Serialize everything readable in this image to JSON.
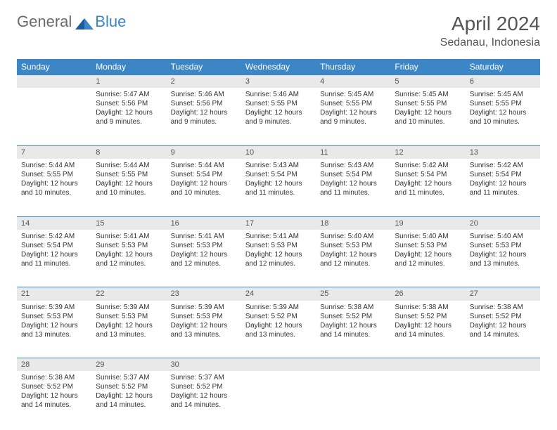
{
  "brand": {
    "part1": "General",
    "part2": "Blue"
  },
  "title": "April 2024",
  "location": "Sedanau, Indonesia",
  "colors": {
    "header_bg": "#3d86c6",
    "header_fg": "#ffffff",
    "daynum_bg": "#e9e9e9",
    "row_border": "#3d86c6",
    "text": "#333333",
    "title_color": "#555555"
  },
  "weekdays": [
    "Sunday",
    "Monday",
    "Tuesday",
    "Wednesday",
    "Thursday",
    "Friday",
    "Saturday"
  ],
  "weeks": [
    [
      null,
      {
        "n": "1",
        "sr": "5:47 AM",
        "ss": "5:56 PM",
        "dl": "12 hours and 9 minutes."
      },
      {
        "n": "2",
        "sr": "5:46 AM",
        "ss": "5:56 PM",
        "dl": "12 hours and 9 minutes."
      },
      {
        "n": "3",
        "sr": "5:46 AM",
        "ss": "5:55 PM",
        "dl": "12 hours and 9 minutes."
      },
      {
        "n": "4",
        "sr": "5:45 AM",
        "ss": "5:55 PM",
        "dl": "12 hours and 9 minutes."
      },
      {
        "n": "5",
        "sr": "5:45 AM",
        "ss": "5:55 PM",
        "dl": "12 hours and 10 minutes."
      },
      {
        "n": "6",
        "sr": "5:45 AM",
        "ss": "5:55 PM",
        "dl": "12 hours and 10 minutes."
      }
    ],
    [
      {
        "n": "7",
        "sr": "5:44 AM",
        "ss": "5:55 PM",
        "dl": "12 hours and 10 minutes."
      },
      {
        "n": "8",
        "sr": "5:44 AM",
        "ss": "5:55 PM",
        "dl": "12 hours and 10 minutes."
      },
      {
        "n": "9",
        "sr": "5:44 AM",
        "ss": "5:54 PM",
        "dl": "12 hours and 10 minutes."
      },
      {
        "n": "10",
        "sr": "5:43 AM",
        "ss": "5:54 PM",
        "dl": "12 hours and 11 minutes."
      },
      {
        "n": "11",
        "sr": "5:43 AM",
        "ss": "5:54 PM",
        "dl": "12 hours and 11 minutes."
      },
      {
        "n": "12",
        "sr": "5:42 AM",
        "ss": "5:54 PM",
        "dl": "12 hours and 11 minutes."
      },
      {
        "n": "13",
        "sr": "5:42 AM",
        "ss": "5:54 PM",
        "dl": "12 hours and 11 minutes."
      }
    ],
    [
      {
        "n": "14",
        "sr": "5:42 AM",
        "ss": "5:54 PM",
        "dl": "12 hours and 11 minutes."
      },
      {
        "n": "15",
        "sr": "5:41 AM",
        "ss": "5:53 PM",
        "dl": "12 hours and 12 minutes."
      },
      {
        "n": "16",
        "sr": "5:41 AM",
        "ss": "5:53 PM",
        "dl": "12 hours and 12 minutes."
      },
      {
        "n": "17",
        "sr": "5:41 AM",
        "ss": "5:53 PM",
        "dl": "12 hours and 12 minutes."
      },
      {
        "n": "18",
        "sr": "5:40 AM",
        "ss": "5:53 PM",
        "dl": "12 hours and 12 minutes."
      },
      {
        "n": "19",
        "sr": "5:40 AM",
        "ss": "5:53 PM",
        "dl": "12 hours and 12 minutes."
      },
      {
        "n": "20",
        "sr": "5:40 AM",
        "ss": "5:53 PM",
        "dl": "12 hours and 13 minutes."
      }
    ],
    [
      {
        "n": "21",
        "sr": "5:39 AM",
        "ss": "5:53 PM",
        "dl": "12 hours and 13 minutes."
      },
      {
        "n": "22",
        "sr": "5:39 AM",
        "ss": "5:53 PM",
        "dl": "12 hours and 13 minutes."
      },
      {
        "n": "23",
        "sr": "5:39 AM",
        "ss": "5:53 PM",
        "dl": "12 hours and 13 minutes."
      },
      {
        "n": "24",
        "sr": "5:39 AM",
        "ss": "5:52 PM",
        "dl": "12 hours and 13 minutes."
      },
      {
        "n": "25",
        "sr": "5:38 AM",
        "ss": "5:52 PM",
        "dl": "12 hours and 14 minutes."
      },
      {
        "n": "26",
        "sr": "5:38 AM",
        "ss": "5:52 PM",
        "dl": "12 hours and 14 minutes."
      },
      {
        "n": "27",
        "sr": "5:38 AM",
        "ss": "5:52 PM",
        "dl": "12 hours and 14 minutes."
      }
    ],
    [
      {
        "n": "28",
        "sr": "5:38 AM",
        "ss": "5:52 PM",
        "dl": "12 hours and 14 minutes."
      },
      {
        "n": "29",
        "sr": "5:37 AM",
        "ss": "5:52 PM",
        "dl": "12 hours and 14 minutes."
      },
      {
        "n": "30",
        "sr": "5:37 AM",
        "ss": "5:52 PM",
        "dl": "12 hours and 14 minutes."
      },
      null,
      null,
      null,
      null
    ]
  ],
  "labels": {
    "sunrise": "Sunrise:",
    "sunset": "Sunset:",
    "daylight": "Daylight:"
  }
}
